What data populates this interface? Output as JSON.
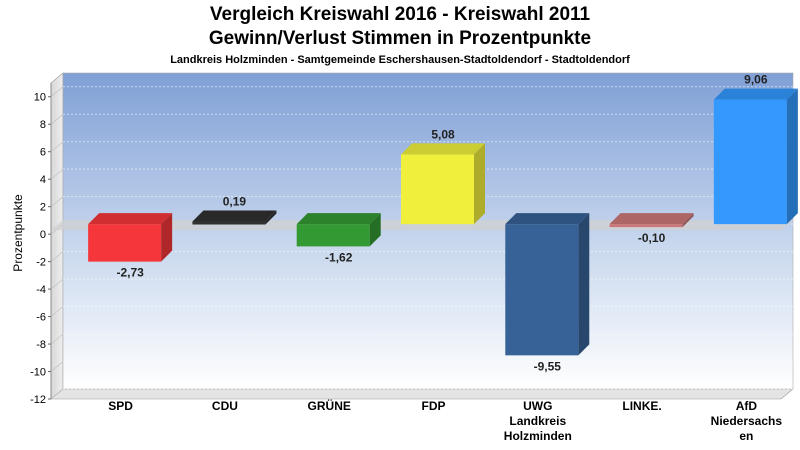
{
  "chart_data": {
    "type": "bar",
    "title": "Vergleich Kreiswahl 2016 - Kreiswahl 2011",
    "subtitle": "Gewinn/Verlust Stimmen in Prozentpunkte",
    "caption": "Landkreis Holzminden - Samtgemeinde Eschershausen-Stadtoldendorf - Stadtoldendorf",
    "ylabel": "Prozentpunkte",
    "xlabel": "",
    "ylim": [
      -12,
      11
    ],
    "yticks": [
      10,
      8,
      6,
      4,
      2,
      0,
      -2,
      -4,
      -6,
      -8,
      -10,
      -12
    ],
    "grid": true,
    "categories": [
      [
        "SPD"
      ],
      [
        "CDU"
      ],
      [
        "GRÜNE"
      ],
      [
        "FDP"
      ],
      [
        "UWG",
        "Landkreis",
        "Holzminden"
      ],
      [
        "LINKE."
      ],
      [
        "AfD",
        "Niedersachs",
        "en"
      ]
    ],
    "values": [
      -2.73,
      0.19,
      -1.62,
      5.08,
      -9.55,
      -0.1,
      9.06
    ],
    "value_labels": [
      "-2,73",
      "0,19",
      "-1,62",
      "5,08",
      "-9,55",
      "-0,10",
      "9,06"
    ],
    "colors": [
      "#f5363a",
      "#303030",
      "#339933",
      "#f0f03c",
      "#366298",
      "#cc7777",
      "#3399ff"
    ]
  }
}
